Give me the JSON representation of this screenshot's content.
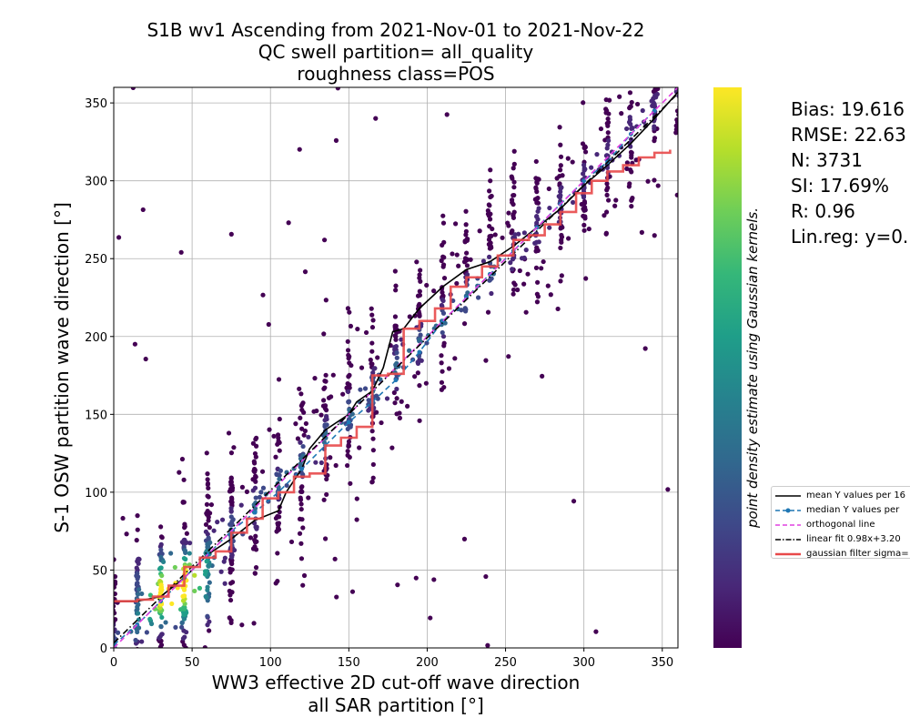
{
  "chart_data": {
    "type": "scatter",
    "title": [
      "S1B wv1 Ascending from 2021-Nov-01 to 2021-Nov-22",
      "QC swell partition= all_quality",
      "roughness class=POS"
    ],
    "xlabel": [
      "WW3 effective 2D cut-off wave direction",
      "all SAR partition [°]"
    ],
    "ylabel": "S-1 OSW partition wave direction [°]",
    "xlim": [
      0,
      360
    ],
    "ylim": [
      0,
      360
    ],
    "x_ticks": [
      "0",
      "50",
      "100",
      "150",
      "200",
      "250",
      "300",
      "350"
    ],
    "y_ticks": [
      "0",
      "50",
      "100",
      "150",
      "200",
      "250",
      "300",
      "350"
    ],
    "grid": true,
    "colorbar_label": "point density estimate using Gaussian kernels.",
    "stats": [
      "Bias: 19.616",
      "RMSE: 22.63",
      "N: 3731",
      "SI: 17.69%",
      "R: 0.96",
      "Lin.reg: y=0."
    ],
    "legend_position": "right-bottom",
    "legend": [
      "mean Y values per 16",
      "median Y values per",
      "orthogonal line",
      "linear fit 0.98x+3.20",
      "gaussian filter sigma="
    ],
    "series": [
      {
        "name": "mean Y values per 16",
        "color": "#000000",
        "x": [
          0,
          15,
          30,
          45,
          60,
          75,
          90,
          105,
          110,
          120,
          125,
          135,
          150,
          155,
          165,
          172,
          178,
          185,
          195,
          210,
          225,
          240,
          255,
          270,
          285,
          300,
          315,
          330,
          345,
          360
        ],
        "y": [
          30,
          30,
          33,
          45,
          60,
          70,
          82,
          88,
          100,
          115,
          128,
          140,
          150,
          158,
          165,
          180,
          203,
          205,
          218,
          232,
          243,
          248,
          258,
          270,
          282,
          297,
          310,
          324,
          340,
          357
        ]
      },
      {
        "name": "median Y values per",
        "color": "#1f77b4",
        "x": [
          0,
          15,
          30,
          45,
          60,
          75,
          90,
          105,
          120,
          135,
          150,
          165,
          180,
          195,
          210,
          225,
          240,
          255,
          270,
          285,
          300,
          315,
          330,
          345
        ],
        "y": [
          2,
          15,
          30,
          45,
          60,
          75,
          87,
          100,
          115,
          130,
          145,
          158,
          172,
          190,
          210,
          225,
          240,
          255,
          270,
          285,
          300,
          312,
          330,
          345
        ]
      },
      {
        "name": "orthogonal line",
        "color": "#e377c2",
        "x": [
          0,
          360
        ],
        "y": [
          0,
          360
        ]
      },
      {
        "name": "linear fit 0.98x+3.20",
        "color": "#000000",
        "x": [
          0,
          360
        ],
        "y": [
          3.2,
          356
        ]
      },
      {
        "name": "gaussian filter sigma=",
        "color": "#e8494a",
        "x": [
          0,
          5,
          15,
          25,
          35,
          45,
          55,
          65,
          75,
          85,
          95,
          105,
          115,
          125,
          135,
          145,
          155,
          165,
          175,
          185,
          195,
          205,
          215,
          225,
          235,
          245,
          255,
          265,
          275,
          285,
          295,
          305,
          315,
          325,
          335,
          345,
          355
        ],
        "y": [
          30,
          30,
          31,
          33,
          40,
          52,
          58,
          62,
          74,
          83,
          96,
          100,
          110,
          112,
          130,
          135,
          142,
          175,
          176,
          205,
          210,
          218,
          232,
          238,
          245,
          252,
          262,
          265,
          272,
          280,
          292,
          300,
          306,
          310,
          315,
          318,
          320
        ]
      }
    ],
    "colormap": [
      "#440154",
      "#482878",
      "#3e4989",
      "#31688e",
      "#26828e",
      "#1f9e89",
      "#35b779",
      "#6ece58",
      "#b5de2b",
      "#fde725"
    ]
  }
}
